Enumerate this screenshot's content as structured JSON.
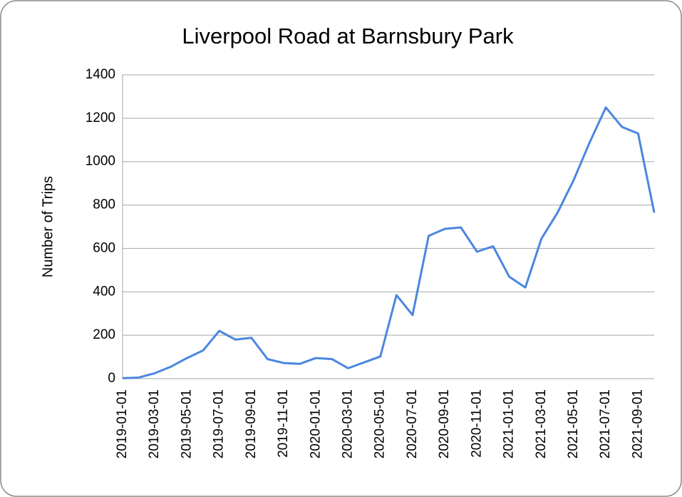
{
  "chart_data": {
    "type": "line",
    "title": "Liverpool Road at Barnsbury Park",
    "y_label": "Number of Trips",
    "categories": [
      "2019-01-01",
      null,
      "2019-03-01",
      null,
      "2019-05-01",
      null,
      "2019-07-01",
      null,
      "2019-09-01",
      null,
      "2019-11-01",
      null,
      "2020-01-01",
      null,
      "2020-03-01",
      null,
      "2020-05-01",
      null,
      "2020-07-01",
      null,
      "2020-09-01",
      null,
      "2020-11-01",
      null,
      "2021-01-01",
      null,
      "2021-03-01",
      null,
      "2021-05-01",
      null,
      "2021-07-01",
      null,
      "2021-09-01",
      null
    ],
    "series": [
      {
        "name": "Number of Trips",
        "color": "#4a86e0",
        "values": [
          2,
          5,
          25,
          55,
          95,
          130,
          220,
          180,
          188,
          90,
          72,
          68,
          95,
          90,
          48,
          75,
          102,
          385,
          293,
          658,
          690,
          697,
          585,
          610,
          470,
          420,
          645,
          765,
          915,
          1090,
          1250,
          1160,
          1130,
          765
        ]
      }
    ],
    "ylim": [
      0,
      1400
    ],
    "yticks": [
      0,
      200,
      400,
      600,
      800,
      1000,
      1200,
      1400
    ],
    "grid": true
  }
}
